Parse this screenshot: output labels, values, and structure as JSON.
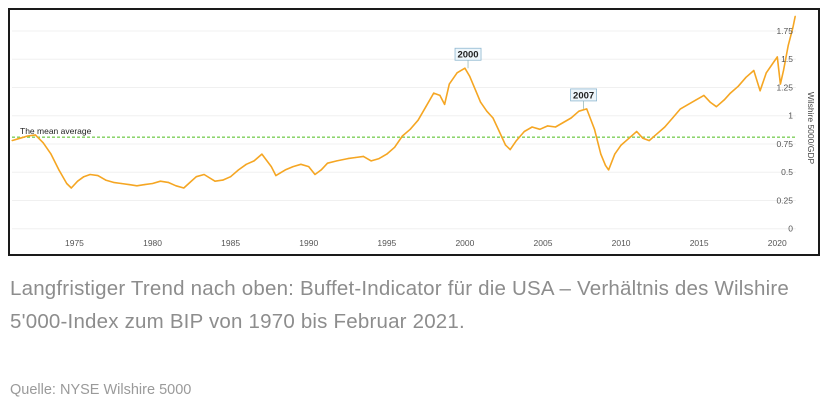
{
  "caption": "Langfristiger Trend nach oben: Buffet-Indicator für die USA – Verhältnis des Wilshire 5'000-Index zum BIP von 1970 bis Februar 2021.",
  "source": "Quelle: NYSE Wilshire 5000",
  "chart_data": {
    "type": "line",
    "title": "",
    "xlabel": "",
    "ylabel": "Wilshire 5000/GDP",
    "xlim": [
      1971,
      2021.2
    ],
    "ylim": [
      -0.1,
      1.9
    ],
    "x_ticks": [
      "1975",
      "1980",
      "1985",
      "1990",
      "1995",
      "2000",
      "2005",
      "2010",
      "2015",
      "2020"
    ],
    "y_ticks": [
      "0",
      "0.25",
      "0.5",
      "0.75",
      "1",
      "1.25",
      "1.5",
      "1.75"
    ],
    "mean_line": {
      "label": "The mean average",
      "value": 0.81,
      "color": "#7dcf5a"
    },
    "annotations": [
      {
        "label": "2000",
        "x": 2000.2,
        "y": 1.42
      },
      {
        "label": "2007",
        "x": 2007.6,
        "y": 1.06
      }
    ],
    "series": [
      {
        "color": "#f5a623",
        "x": [
          1971.0,
          1971.5,
          1972.0,
          1972.5,
          1973.0,
          1973.5,
          1974.0,
          1974.5,
          1974.8,
          1975.2,
          1975.6,
          1976.0,
          1976.5,
          1977.0,
          1977.5,
          1978.0,
          1978.5,
          1979.0,
          1979.5,
          1980.0,
          1980.5,
          1981.0,
          1981.5,
          1982.0,
          1982.4,
          1982.8,
          1983.3,
          1984.0,
          1984.5,
          1985.0,
          1985.5,
          1986.0,
          1986.5,
          1987.0,
          1987.6,
          1987.9,
          1988.5,
          1989.0,
          1989.5,
          1990.0,
          1990.4,
          1990.8,
          1991.2,
          1991.8,
          1992.5,
          1993.0,
          1993.5,
          1994.0,
          1994.5,
          1995.0,
          1995.5,
          1996.0,
          1996.5,
          1997.0,
          1997.5,
          1998.0,
          1998.4,
          1998.7,
          1999.0,
          1999.5,
          2000.0,
          2000.3,
          2000.7,
          2001.0,
          2001.4,
          2001.8,
          2002.2,
          2002.6,
          2002.9,
          2003.3,
          2003.8,
          2004.3,
          2004.8,
          2005.3,
          2005.8,
          2006.3,
          2006.8,
          2007.3,
          2007.8,
          2008.3,
          2008.7,
          2009.0,
          2009.2,
          2009.6,
          2010.0,
          2010.5,
          2011.0,
          2011.4,
          2011.8,
          2012.3,
          2012.8,
          2013.3,
          2013.8,
          2014.3,
          2014.8,
          2015.3,
          2015.7,
          2016.1,
          2016.6,
          2017.0,
          2017.5,
          2018.0,
          2018.5,
          2018.9,
          2019.3,
          2019.8,
          2020.0,
          2020.2,
          2020.4,
          2020.7,
          2021.0,
          2021.15
        ],
        "values": [
          0.78,
          0.8,
          0.82,
          0.83,
          0.76,
          0.66,
          0.52,
          0.4,
          0.36,
          0.42,
          0.46,
          0.48,
          0.47,
          0.43,
          0.41,
          0.4,
          0.39,
          0.38,
          0.39,
          0.4,
          0.42,
          0.41,
          0.38,
          0.36,
          0.41,
          0.46,
          0.48,
          0.42,
          0.43,
          0.46,
          0.52,
          0.57,
          0.6,
          0.66,
          0.55,
          0.47,
          0.52,
          0.55,
          0.57,
          0.55,
          0.48,
          0.52,
          0.58,
          0.6,
          0.62,
          0.63,
          0.64,
          0.6,
          0.62,
          0.66,
          0.72,
          0.82,
          0.88,
          0.96,
          1.08,
          1.2,
          1.18,
          1.1,
          1.28,
          1.38,
          1.42,
          1.35,
          1.22,
          1.12,
          1.04,
          0.98,
          0.86,
          0.74,
          0.7,
          0.78,
          0.86,
          0.9,
          0.88,
          0.91,
          0.9,
          0.94,
          0.98,
          1.04,
          1.06,
          0.88,
          0.66,
          0.56,
          0.52,
          0.66,
          0.74,
          0.8,
          0.86,
          0.8,
          0.78,
          0.84,
          0.9,
          0.98,
          1.06,
          1.1,
          1.14,
          1.18,
          1.12,
          1.08,
          1.14,
          1.2,
          1.26,
          1.34,
          1.4,
          1.22,
          1.38,
          1.48,
          1.52,
          1.28,
          1.4,
          1.62,
          1.78,
          1.88
        ]
      }
    ]
  }
}
